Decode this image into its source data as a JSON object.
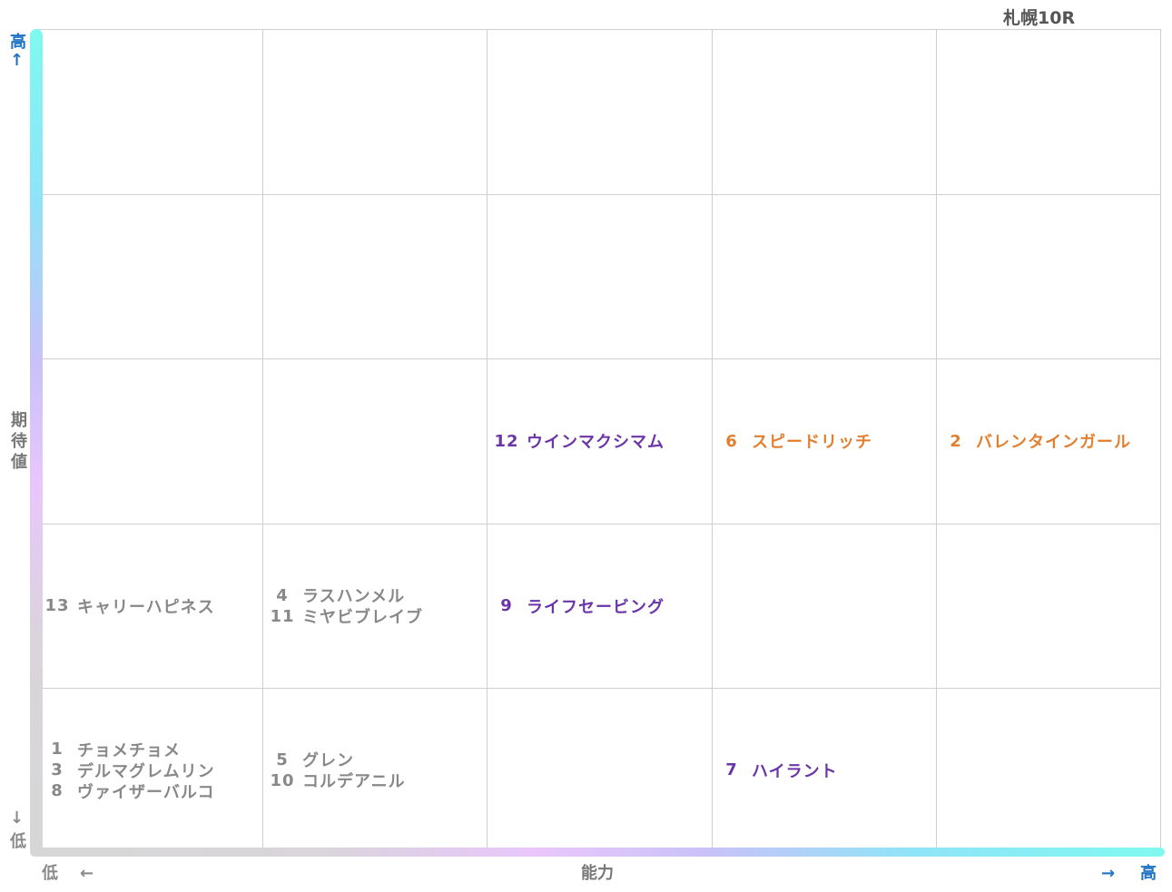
{
  "chart_data": {
    "type": "table",
    "title": "札幌10R",
    "xlabel": "能力",
    "ylabel": "期待値",
    "x_low_label": "低",
    "x_high_label": "高",
    "y_low_label": "低",
    "y_high_label": "高",
    "x_low_arrow": "←",
    "x_high_arrow": "→",
    "y_low_arrow": "↓",
    "y_high_arrow": "↑",
    "columns": 5,
    "rows": 5,
    "cells": [
      {
        "col": 1,
        "row": 2,
        "entries": [
          {
            "num": "13",
            "name": "キャリーハピネス",
            "color": "#888888"
          }
        ]
      },
      {
        "col": 1,
        "row": 1,
        "entries": [
          {
            "num": "1",
            "name": "チョメチョメ",
            "color": "#888888"
          },
          {
            "num": "3",
            "name": "デルマグレムリン",
            "color": "#888888"
          },
          {
            "num": "8",
            "name": "ヴァイザーバルコ",
            "color": "#888888"
          }
        ]
      },
      {
        "col": 2,
        "row": 2,
        "entries": [
          {
            "num": "4",
            "name": "ラスハンメル",
            "color": "#888888"
          },
          {
            "num": "11",
            "name": "ミヤビブレイブ",
            "color": "#888888"
          }
        ]
      },
      {
        "col": 2,
        "row": 1,
        "entries": [
          {
            "num": "5",
            "name": "グレン",
            "color": "#888888"
          },
          {
            "num": "10",
            "name": "コルデアニル",
            "color": "#888888"
          }
        ]
      },
      {
        "col": 3,
        "row": 3,
        "entries": [
          {
            "num": "12",
            "name": "ウインマクシマム",
            "color": "#6b35a8"
          }
        ]
      },
      {
        "col": 3,
        "row": 2,
        "entries": [
          {
            "num": "9",
            "name": "ライフセービング",
            "color": "#6b35a8"
          }
        ]
      },
      {
        "col": 4,
        "row": 3,
        "entries": [
          {
            "num": "6",
            "name": "スピードリッチ",
            "color": "#e17f2f"
          }
        ]
      },
      {
        "col": 4,
        "row": 1,
        "entries": [
          {
            "num": "7",
            "name": "ハイラント",
            "color": "#6b35a8"
          }
        ]
      },
      {
        "col": 5,
        "row": 3,
        "entries": [
          {
            "num": "2",
            "name": "バレンタインガール",
            "color": "#e17f2f"
          }
        ]
      }
    ]
  }
}
